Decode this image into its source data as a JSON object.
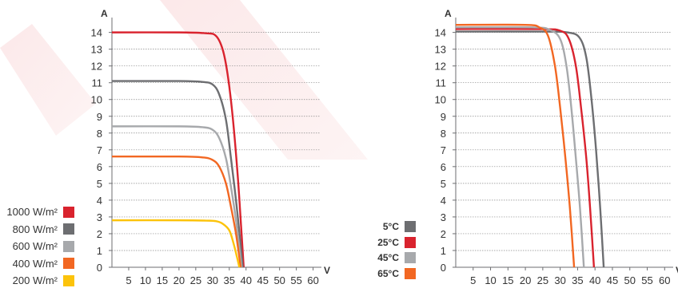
{
  "chart_data": [
    {
      "type": "line",
      "title": "",
      "xlabel": "V",
      "ylabel": "A",
      "xlim": [
        0,
        62
      ],
      "ylim": [
        0,
        14.6
      ],
      "x_ticks": [
        5,
        10,
        15,
        20,
        25,
        30,
        35,
        40,
        45,
        50,
        55,
        60
      ],
      "y_ticks": [
        0,
        1,
        2,
        3,
        4,
        5,
        6,
        7,
        8,
        9,
        10,
        11,
        12,
        13,
        14
      ],
      "grid": true,
      "legend_position": "bottom-left",
      "series": [
        {
          "name": "1000 W/m²",
          "color": "#d9232e",
          "points": [
            [
              0,
              14.0
            ],
            [
              20,
              14.0
            ],
            [
              28,
              13.95
            ],
            [
              31,
              13.8
            ],
            [
              33,
              13.0
            ],
            [
              34.5,
              11.5
            ],
            [
              36,
              9.0
            ],
            [
              37.5,
              5.5
            ],
            [
              38.5,
              2.5
            ],
            [
              39.3,
              0
            ]
          ]
        },
        {
          "name": "800 W/m²",
          "color": "#6d6e71",
          "points": [
            [
              0,
              11.1
            ],
            [
              20,
              11.1
            ],
            [
              27,
              11.05
            ],
            [
              30,
              10.9
            ],
            [
              32,
              10.3
            ],
            [
              34,
              8.8
            ],
            [
              35.5,
              6.5
            ],
            [
              37,
              4.0
            ],
            [
              38.3,
              1.5
            ],
            [
              39.0,
              0
            ]
          ]
        },
        {
          "name": "600 W/m²",
          "color": "#a7a9ac",
          "points": [
            [
              0,
              8.4
            ],
            [
              20,
              8.4
            ],
            [
              27,
              8.35
            ],
            [
              30,
              8.2
            ],
            [
              32,
              7.7
            ],
            [
              34,
              6.5
            ],
            [
              35.5,
              4.8
            ],
            [
              37,
              2.8
            ],
            [
              38.7,
              0
            ]
          ]
        },
        {
          "name": "400 W/m²",
          "color": "#f26722",
          "points": [
            [
              0,
              6.6
            ],
            [
              20,
              6.6
            ],
            [
              27,
              6.55
            ],
            [
              30,
              6.4
            ],
            [
              32,
              6.0
            ],
            [
              34,
              5.0
            ],
            [
              35.5,
              3.6
            ],
            [
              37,
              2.0
            ],
            [
              38.4,
              0
            ]
          ]
        },
        {
          "name": "200 W/m²",
          "color": "#fcc30b",
          "points": [
            [
              0,
              2.8
            ],
            [
              20,
              2.8
            ],
            [
              28,
              2.78
            ],
            [
              31,
              2.75
            ],
            [
              33,
              2.6
            ],
            [
              35,
              2.2
            ],
            [
              36.3,
              1.4
            ],
            [
              37.3,
              0.6
            ],
            [
              38.0,
              0
            ]
          ]
        }
      ]
    },
    {
      "type": "line",
      "title": "",
      "xlabel": "V",
      "ylabel": "A",
      "xlim": [
        0,
        62
      ],
      "ylim": [
        0,
        14.6
      ],
      "x_ticks": [
        5,
        10,
        15,
        20,
        25,
        30,
        35,
        40,
        45,
        50,
        55,
        60
      ],
      "y_ticks": [
        0,
        1,
        2,
        3,
        4,
        5,
        6,
        7,
        8,
        9,
        10,
        11,
        12,
        13,
        14
      ],
      "grid": true,
      "legend_position": "bottom-left",
      "series": [
        {
          "name": "5°C",
          "color": "#6d6e71",
          "points": [
            [
              0,
              14.05
            ],
            [
              25,
              14.05
            ],
            [
              32,
              14.0
            ],
            [
              35.5,
              13.7
            ],
            [
              37.5,
              12.5
            ],
            [
              39,
              10.0
            ],
            [
              40.3,
              7.0
            ],
            [
              41.5,
              3.5
            ],
            [
              42.5,
              0
            ]
          ]
        },
        {
          "name": "25°C",
          "color": "#d9232e",
          "points": [
            [
              0,
              14.2
            ],
            [
              24,
              14.2
            ],
            [
              30,
              14.1
            ],
            [
              32.5,
              13.6
            ],
            [
              34.5,
              12.0
            ],
            [
              36,
              9.5
            ],
            [
              37.5,
              6.5
            ],
            [
              38.6,
              3.5
            ],
            [
              39.7,
              0
            ]
          ]
        },
        {
          "name": "45°C",
          "color": "#a7a9ac",
          "points": [
            [
              0,
              14.3
            ],
            [
              22,
              14.3
            ],
            [
              27,
              14.15
            ],
            [
              30,
              13.6
            ],
            [
              31.8,
              12.0
            ],
            [
              33.2,
              9.5
            ],
            [
              34.5,
              6.5
            ],
            [
              35.7,
              3.5
            ],
            [
              36.8,
              0
            ]
          ]
        },
        {
          "name": "65°C",
          "color": "#f26722",
          "points": [
            [
              0,
              14.45
            ],
            [
              20,
              14.45
            ],
            [
              24,
              14.3
            ],
            [
              26.5,
              13.8
            ],
            [
              28.5,
              12.0
            ],
            [
              30,
              9.5
            ],
            [
              31.5,
              6.5
            ],
            [
              32.8,
              3.5
            ],
            [
              34.0,
              0
            ]
          ]
        }
      ]
    }
  ]
}
